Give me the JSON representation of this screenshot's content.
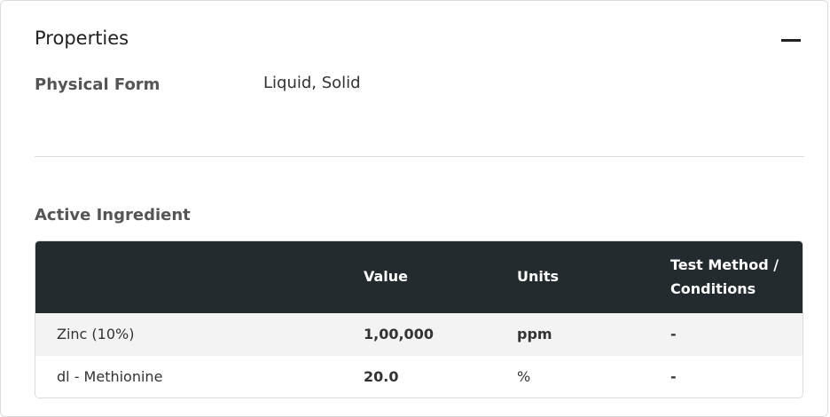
{
  "section": {
    "title": "Properties",
    "collapse_icon": "minus-icon"
  },
  "physical_form": {
    "label": "Physical Form",
    "value": "Liquid, Solid"
  },
  "active_ingredient": {
    "label": "Active Ingredient",
    "columns": [
      "",
      "Value",
      "Units",
      "Test Method / Conditions"
    ],
    "rows": [
      {
        "name": "Zinc (10%)",
        "value": "1,00,000",
        "units": "ppm",
        "method": "-"
      },
      {
        "name": "dl - Methionine",
        "value": "20.0",
        "units": "%",
        "method": "-"
      }
    ]
  },
  "colors": {
    "header_bg": "#242b2e",
    "row_alt_bg": "#f3f3f3"
  }
}
